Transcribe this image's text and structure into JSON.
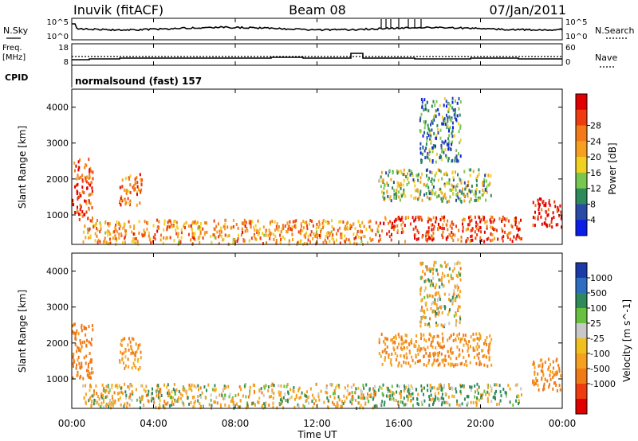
{
  "header": {
    "station": "Inuvik (fitACF)",
    "beam": "Beam 08",
    "date": "07/Jan/2011"
  },
  "small_panels": {
    "nsky": {
      "label": "N.Sky",
      "right_label": "N.Search",
      "y_ticks_left": [
        "10^5",
        "10^0"
      ],
      "y_ticks_right": [
        "10^5",
        "10^0"
      ]
    },
    "freq": {
      "label_line1": "Freq.",
      "label_line2": "[MHz]",
      "right_label": "Nave",
      "y_ticks_left": [
        "18",
        "8"
      ],
      "y_ticks_right": [
        "60",
        "0"
      ]
    },
    "cpid": {
      "label": "CPID",
      "value": "normalsound (fast) 157"
    }
  },
  "x_axis": {
    "label": "Time UT",
    "ticks": [
      "00:00",
      "04:00",
      "08:00",
      "12:00",
      "16:00",
      "20:00",
      "00:00"
    ]
  },
  "power_colorbar": {
    "label": "Power [dB]",
    "ticks": [
      "4",
      "8",
      "12",
      "16",
      "20",
      "24",
      "28"
    ],
    "colors": [
      "#0a1ee8",
      "#2a4aa8",
      "#2e8a5a",
      "#78c850",
      "#f0d020",
      "#f5a020",
      "#f27a18",
      "#ee3c10",
      "#e00000"
    ]
  },
  "velocity_colorbar": {
    "label": "Velocity [m s^-1]",
    "ticks": [
      "1000",
      "500",
      "100",
      "25",
      "-25",
      "-100",
      "-500",
      "-1000"
    ],
    "colors": [
      "#1a3aa8",
      "#2e6ec0",
      "#2e8a5a",
      "#68c040",
      "#c8c8c8",
      "#f0c020",
      "#f5a020",
      "#f07a18",
      "#ee3c10",
      "#e00000"
    ]
  },
  "chart_data": [
    {
      "type": "heatmap",
      "title": "",
      "xlabel": "Time UT",
      "ylabel": "Slant Range [km]",
      "xlim": [
        "00:00",
        "24:00"
      ],
      "ylim": [
        180,
        4500
      ],
      "y_ticks": [
        1000,
        2000,
        3000,
        4000
      ],
      "colorbar": "Power [dB]",
      "zlim": [
        0,
        30
      ],
      "regions": [
        {
          "t_start": 0.0,
          "t_end": 1.0,
          "r_min": 900,
          "r_max": 2600,
          "value": 24
        },
        {
          "t_start": 2.3,
          "t_end": 3.4,
          "r_min": 1300,
          "r_max": 2200,
          "value": 22
        },
        {
          "t_start": 0.5,
          "t_end": 15.0,
          "r_min": 200,
          "r_max": 900,
          "value": 20
        },
        {
          "t_start": 15.0,
          "t_end": 22.0,
          "r_min": 300,
          "r_max": 1000,
          "value": 25
        },
        {
          "t_start": 15.0,
          "t_end": 20.5,
          "r_min": 1400,
          "r_max": 2300,
          "value": 12
        },
        {
          "t_start": 17.0,
          "t_end": 19.0,
          "r_min": 2500,
          "r_max": 4300,
          "value": 8
        },
        {
          "t_start": 22.5,
          "t_end": 24.0,
          "r_min": 700,
          "r_max": 1500,
          "value": 28
        }
      ]
    },
    {
      "type": "heatmap",
      "title": "",
      "xlabel": "Time UT",
      "ylabel": "Slant Range [km]",
      "xlim": [
        "00:00",
        "24:00"
      ],
      "ylim": [
        180,
        4500
      ],
      "y_ticks": [
        1000,
        2000,
        3000,
        4000
      ],
      "colorbar": "Velocity [m s^-1]",
      "zlim": [
        -1000,
        1000
      ],
      "regions": [
        {
          "t_start": 0.0,
          "t_end": 1.0,
          "r_min": 1000,
          "r_max": 2600,
          "value": -500
        },
        {
          "t_start": 2.3,
          "t_end": 3.4,
          "r_min": 1300,
          "r_max": 2200,
          "value": -300
        },
        {
          "t_start": 0.5,
          "t_end": 15.0,
          "r_min": 200,
          "r_max": 900,
          "value": -100
        },
        {
          "t_start": 15.0,
          "t_end": 22.0,
          "r_min": 300,
          "r_max": 900,
          "value": 50
        },
        {
          "t_start": 15.0,
          "t_end": 20.5,
          "r_min": 1400,
          "r_max": 2300,
          "value": -300
        },
        {
          "t_start": 17.0,
          "t_end": 19.0,
          "r_min": 2500,
          "r_max": 4300,
          "value": -100
        },
        {
          "t_start": 22.5,
          "t_end": 24.0,
          "r_min": 700,
          "r_max": 1600,
          "value": -400
        }
      ]
    }
  ]
}
